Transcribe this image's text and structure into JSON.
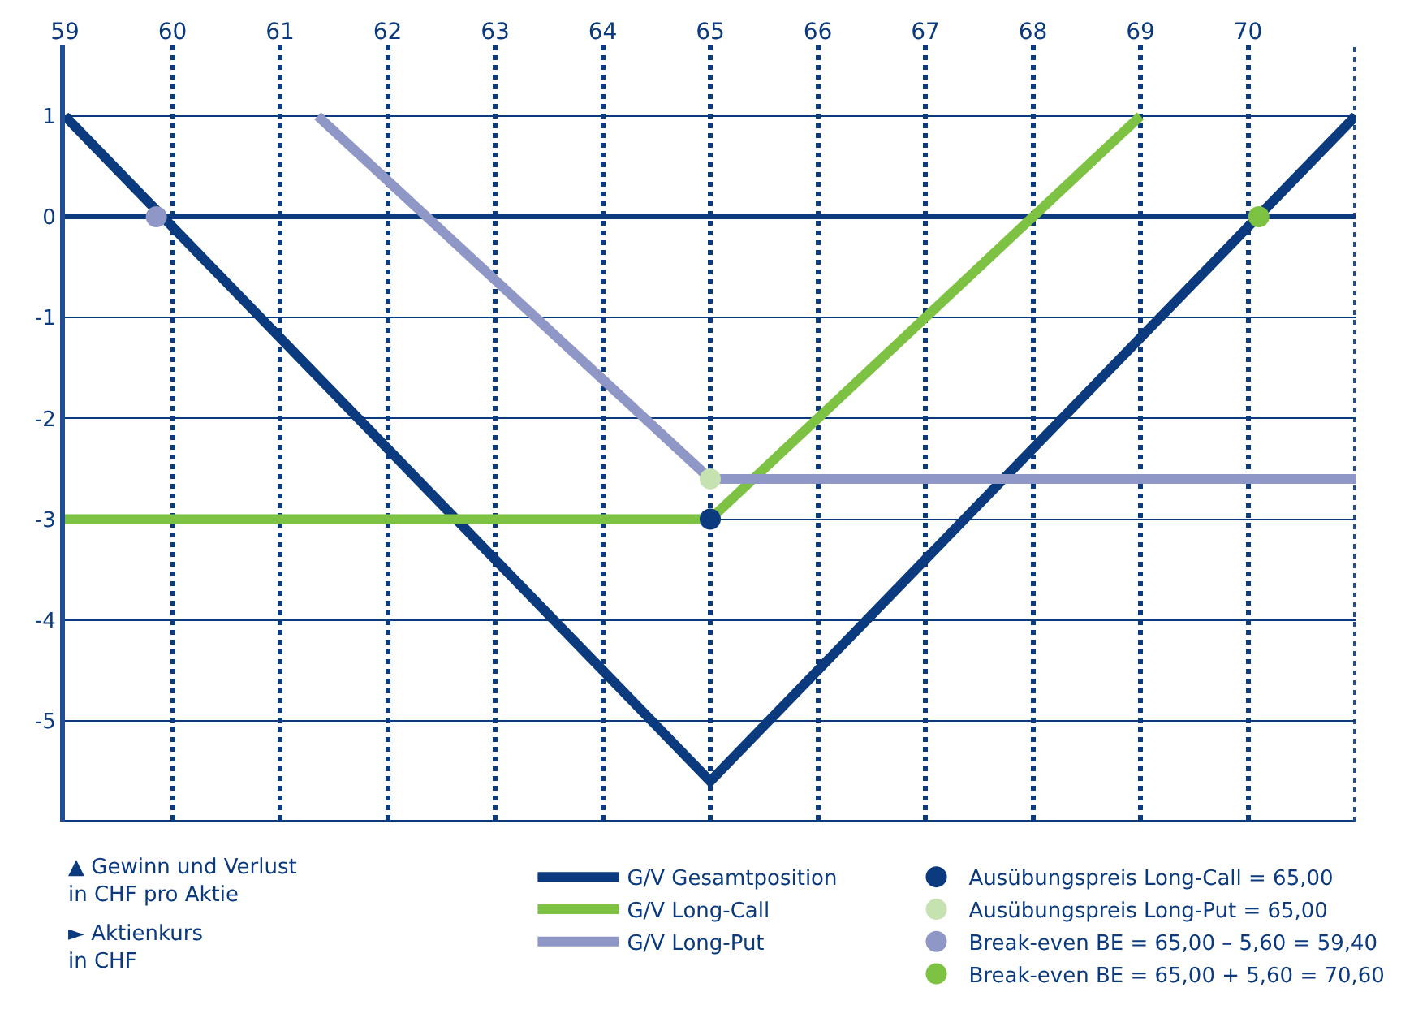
{
  "chart_data": {
    "type": "line",
    "xlim": [
      59,
      71
    ],
    "ylim": [
      -6,
      1.7
    ],
    "xticks": [
      59,
      60,
      61,
      62,
      63,
      64,
      65,
      66,
      67,
      68,
      69,
      70,
      {
        "value": 71,
        "label": null
      }
    ],
    "yticks": [
      1,
      0,
      -1,
      -2,
      -3,
      -4,
      -5
    ],
    "grid": true,
    "legend": "bottom",
    "line_style": "solid",
    "ref_lines": [
      {
        "axis": "y",
        "value": 0,
        "color": "#0b3a7e"
      }
    ],
    "series": [
      {
        "name": "G/V Gesamtposition",
        "color": "#0b3a7e",
        "x": [
          59,
          65,
          71
        ],
        "values": [
          1,
          -5.6,
          1
        ]
      },
      {
        "name": "G/V Long-Call",
        "color": "#7dc242",
        "x": [
          59,
          65,
          69
        ],
        "values": [
          -3,
          -3,
          1
        ]
      },
      {
        "name": "G/V Long-Put",
        "color": "#8e97c5",
        "x": [
          61.35,
          65,
          71
        ],
        "values": [
          1,
          -2.6,
          -2.6
        ]
      },
      {
        "type": "scatter",
        "marker": "circle",
        "name": "Ausübungspreis Long-Call = 65,00",
        "color": "#0b3a7e",
        "x": [
          65
        ],
        "values": [
          -3
        ]
      },
      {
        "type": "scatter",
        "marker": "circle",
        "name": "Ausübungspreis Long-Put = 65,00",
        "color": "#c6e2b0",
        "x": [
          65
        ],
        "values": [
          -2.6
        ]
      },
      {
        "type": "scatter",
        "marker": "circle",
        "name": "Break-even BE = 65,00 – 5,60 = 59,40",
        "color": "#8e97c5",
        "x": [
          59.85
        ],
        "values": [
          0
        ]
      },
      {
        "type": "scatter",
        "marker": "circle",
        "name": "Break-even BE = 65,00 + 5,60 = 70,60",
        "color": "#7dc242",
        "x": [
          70.1
        ],
        "values": [
          0
        ]
      }
    ],
    "annotations": [
      "▲ Gewinn und Verlust\nin CHF pro Aktie",
      "► Aktienkurs\nin CHF"
    ]
  }
}
